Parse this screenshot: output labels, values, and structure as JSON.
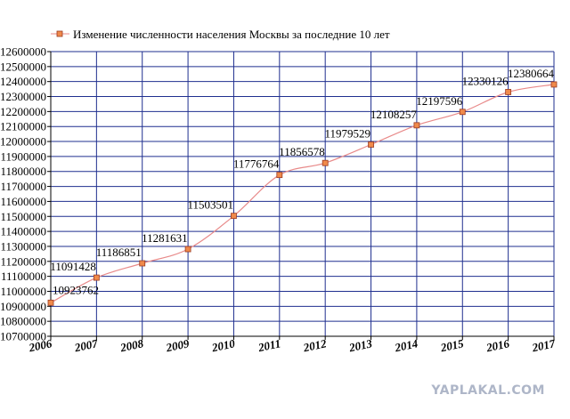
{
  "chart_data": {
    "type": "line",
    "legend": "Изменение численности населения Москвы за последние 10 лет",
    "legend_position": "top-left",
    "grid": true,
    "x_labels": [
      "2006",
      "2007",
      "2008",
      "2009",
      "2010",
      "2011",
      "2012",
      "2013",
      "2014",
      "2015",
      "2016",
      "2017"
    ],
    "y_ticks": [
      10700000,
      10800000,
      10900000,
      11000000,
      11100000,
      11200000,
      11300000,
      11400000,
      11500000,
      11600000,
      11700000,
      11800000,
      11900000,
      12000000,
      12100000,
      12200000,
      12300000,
      12400000,
      12500000,
      12600000
    ],
    "ylim": [
      10700000,
      12600000
    ],
    "values": [
      10923762,
      11091428,
      11186851,
      11281631,
      11503501,
      11776764,
      11856578,
      11979529,
      12108257,
      12197596,
      12330126,
      12380664
    ],
    "data_labels": [
      "10923762",
      "11091428",
      "11186851",
      "11281631",
      "11503501",
      "11776764",
      "11856578",
      "11979529",
      "12108257",
      "12197596",
      "12330126",
      "12380664"
    ],
    "colors": {
      "line": "#e88a8a",
      "marker_fill": "#f08a4b",
      "marker_stroke": "#9a3a22",
      "grid": "#1f2f8f",
      "axis": "#000000"
    }
  },
  "watermark": "YAPLAKAL.COM"
}
